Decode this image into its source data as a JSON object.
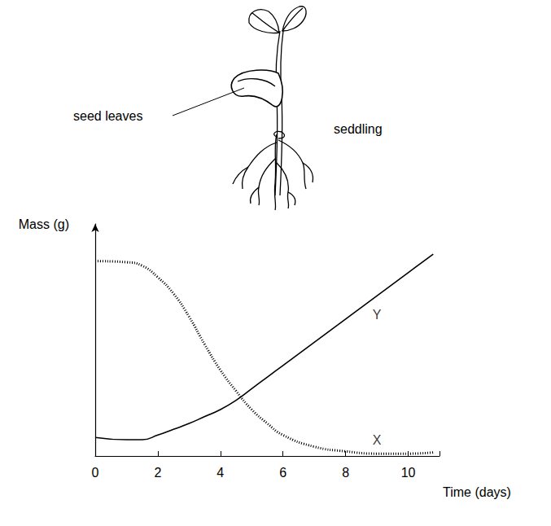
{
  "illustration": {
    "pointer_label": "seed leaves",
    "plant_label": "seddling"
  },
  "chart_data": {
    "type": "line",
    "x_label": "Time (days)",
    "y_label": "Mass (g)",
    "x": [
      0,
      1,
      1.5,
      2,
      2.5,
      3,
      3.5,
      4,
      4.5,
      5,
      5.5,
      6,
      7,
      8,
      9,
      10,
      10.8
    ],
    "series": [
      {
        "name": "X",
        "color": "#000000",
        "line_style": "dotted",
        "values": [
          84,
          83.5,
          82,
          77,
          70,
          60,
          48,
          37,
          28,
          20,
          14,
          9,
          4,
          2,
          1,
          1,
          1.5
        ]
      },
      {
        "name": "Y",
        "color": "#000000",
        "line_style": "solid",
        "values": [
          8,
          7,
          7,
          9,
          11.5,
          14,
          17,
          20,
          24,
          29,
          34,
          39,
          49,
          59,
          69,
          79,
          87
        ]
      }
    ],
    "annotations": [
      {
        "text": "Y",
        "x": 9,
        "y": 61
      },
      {
        "text": "X",
        "x": 9,
        "y": 7
      }
    ],
    "xlim": [
      0,
      11
    ],
    "xticks": [
      0,
      2,
      4,
      6,
      8,
      10
    ],
    "ylim": [
      0,
      100
    ],
    "tick_labels": "x",
    "grid": false
  }
}
